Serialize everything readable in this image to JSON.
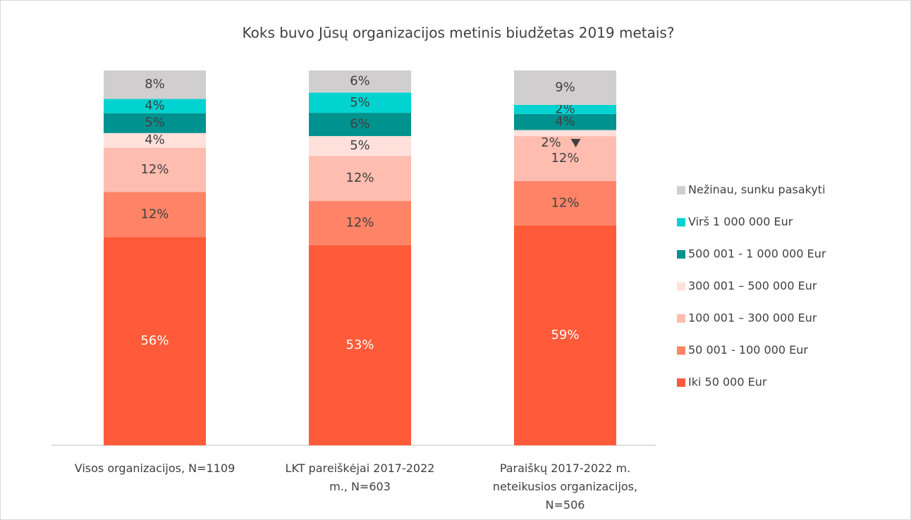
{
  "chart_data": {
    "type": "stacked_bar",
    "title": "Koks buvo Jūsų organizacijos metinis biudžetas 2019 metais?",
    "categories": [
      "Visos organizacijos, N=1109",
      "LKT pareiškėjai 2017-2022 m., N=603",
      "Paraiškų 2017-2022 m. neteikusios organizacijos, N=506"
    ],
    "ylim": [
      0,
      100
    ],
    "legend": "right",
    "series": [
      {
        "name": "Iki 50 000 Eur",
        "color": "#ff5b3a",
        "values": [
          55.6,
          53.4,
          58.7
        ],
        "value_labels": [
          "56%",
          "53%",
          "59%"
        ]
      },
      {
        "name": "50 001 - 100 000 Eur",
        "color": "#ff8467",
        "values": [
          12.0,
          11.8,
          11.8
        ],
        "value_labels": [
          "12%",
          "12%",
          "12%"
        ]
      },
      {
        "name": "100 001 – 300 000 Eur",
        "color": "#ffbdb0",
        "values": [
          11.8,
          12.0,
          12.0
        ],
        "value_labels": [
          "12%",
          "12%",
          "12%"
        ]
      },
      {
        "name": "300 001 – 500 000 Eur",
        "color": "#ffe0da",
        "values": [
          3.9,
          5.3,
          1.6
        ],
        "value_labels": [
          "4%",
          "5%",
          "2%"
        ]
      },
      {
        "name": "500 001 - 1 000 000 Eur",
        "color": "#00928f",
        "values": [
          5.3,
          6.2,
          4.3
        ],
        "value_labels": [
          "5%",
          "6%",
          "4%"
        ]
      },
      {
        "name": "Virš 1 000 000 Eur",
        "color": "#00d3d0",
        "values": [
          3.8,
          5.4,
          2.4
        ],
        "value_labels": [
          "4%",
          "5%",
          "2%"
        ]
      },
      {
        "name": "Nežinau, sunku pasakyti",
        "color": "#d0cece",
        "values": [
          7.6,
          5.9,
          9.2
        ],
        "value_labels": [
          "8%",
          "6%",
          "9%"
        ]
      }
    ]
  }
}
